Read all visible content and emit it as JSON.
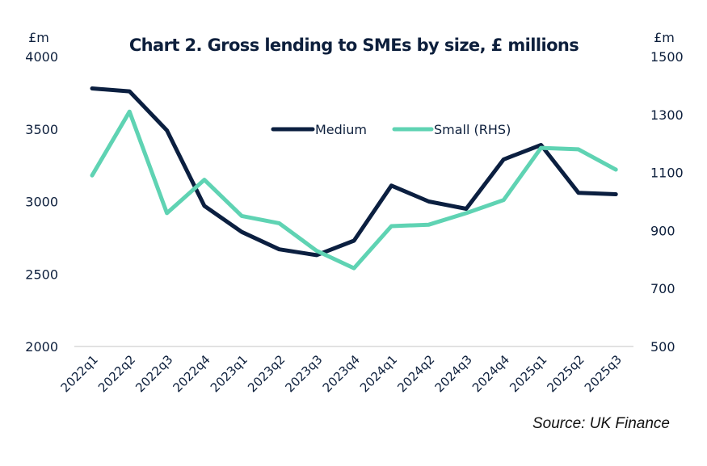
{
  "chart_data": {
    "type": "line",
    "title": "Chart 2. Gross lending to SMEs by size, £ millions",
    "xlabel": "",
    "ylabel": "£m",
    "y2label": "£m",
    "source": "Source: UK Finance",
    "categories": [
      "2022q1",
      "2022q2",
      "2022q3",
      "2022q4",
      "2023q1",
      "2023q2",
      "2023q3",
      "2023q4",
      "2024q1",
      "2024q2",
      "2024q3",
      "2024q4",
      "2025q1",
      "2025q2",
      "2025q3"
    ],
    "ylim": [
      2000,
      4000
    ],
    "yticks": [
      "4000",
      "3500",
      "3000",
      "2500",
      "2000"
    ],
    "yticks_values": [
      4000,
      3500,
      3000,
      2500,
      2000
    ],
    "y2lim": [
      500,
      1500
    ],
    "y2ticks": [
      "1500",
      "1300",
      "1100",
      "900",
      "700",
      "500"
    ],
    "y2ticks_values": [
      1500,
      1300,
      1100,
      900,
      700,
      500
    ],
    "grid": false,
    "legend_position": "top-center",
    "series": [
      {
        "name": "Medium",
        "axis": "left",
        "color": "#0b1f40",
        "values": [
          3780,
          3760,
          3490,
          2970,
          2790,
          2670,
          2630,
          2730,
          3110,
          3000,
          2950,
          3290,
          3390,
          3060,
          3050
        ]
      },
      {
        "name": "Small (RHS)",
        "axis": "right",
        "color": "#5fd3b3",
        "values": [
          1090,
          1310,
          960,
          1075,
          950,
          925,
          830,
          770,
          915,
          920,
          960,
          1005,
          1185,
          1180,
          1110
        ]
      }
    ]
  }
}
